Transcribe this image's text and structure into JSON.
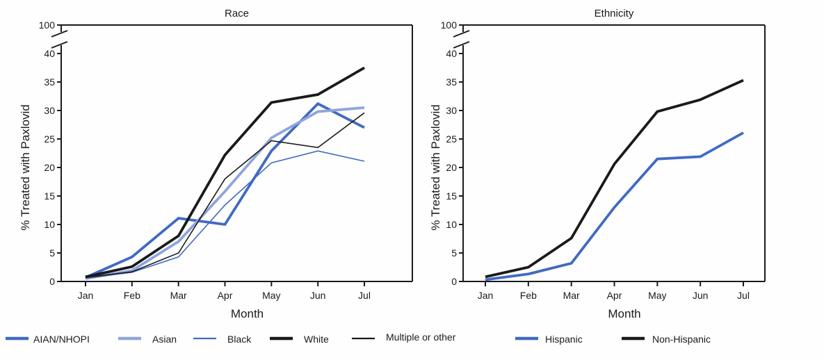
{
  "chart_data": [
    {
      "type": "line",
      "title": "Race",
      "xlabel": "Month",
      "ylabel": "% Treated with Paxlovid",
      "categories": [
        "Jan",
        "Feb",
        "Mar",
        "Apr",
        "May",
        "Jun",
        "Jul"
      ],
      "yticks": [
        0,
        5,
        10,
        15,
        20,
        25,
        30,
        35,
        40
      ],
      "ybreak_top_tick": 100,
      "ylim": [
        0,
        40
      ],
      "grid": false,
      "legend_position": "bottom",
      "series": [
        {
          "name": "AIAN/NHOPI",
          "color": "#4169c4",
          "weight": "thick",
          "values": [
            0.7,
            4.3,
            11.1,
            10.0,
            22.9,
            31.2,
            27.0
          ]
        },
        {
          "name": "Asian",
          "color": "#8fa5dd",
          "weight": "thick",
          "values": [
            0.5,
            1.9,
            7.0,
            15.8,
            25.2,
            29.8,
            30.5
          ]
        },
        {
          "name": "Black",
          "color": "#4169c4",
          "weight": "thin",
          "values": [
            0.6,
            1.6,
            4.3,
            13.4,
            20.8,
            22.9,
            21.1
          ]
        },
        {
          "name": "White",
          "color": "#1a1a1a",
          "weight": "thick",
          "values": [
            0.8,
            2.6,
            8.0,
            22.2,
            31.4,
            32.8,
            37.5
          ]
        },
        {
          "name": "Multiple or other",
          "color": "#1a1a1a",
          "weight": "thin",
          "values": [
            0.7,
            1.7,
            5.0,
            18.0,
            24.7,
            23.5,
            29.6
          ]
        }
      ]
    },
    {
      "type": "line",
      "title": "Ethnicity",
      "xlabel": "Month",
      "ylabel": "% Treated with Paxlovid",
      "categories": [
        "Jan",
        "Feb",
        "Mar",
        "Apr",
        "May",
        "Jun",
        "Jul"
      ],
      "yticks": [
        0,
        5,
        10,
        15,
        20,
        25,
        30,
        35,
        40
      ],
      "ybreak_top_tick": 100,
      "ylim": [
        0,
        40
      ],
      "grid": false,
      "legend_position": "bottom",
      "series": [
        {
          "name": "Hispanic",
          "color": "#4169c4",
          "weight": "thick",
          "values": [
            0.3,
            1.3,
            3.2,
            13.0,
            21.5,
            21.9,
            26.1
          ]
        },
        {
          "name": "Non-Hispanic",
          "color": "#1a1a1a",
          "weight": "thick",
          "values": [
            0.8,
            2.5,
            7.6,
            20.6,
            29.8,
            31.9,
            35.3
          ]
        }
      ]
    }
  ]
}
